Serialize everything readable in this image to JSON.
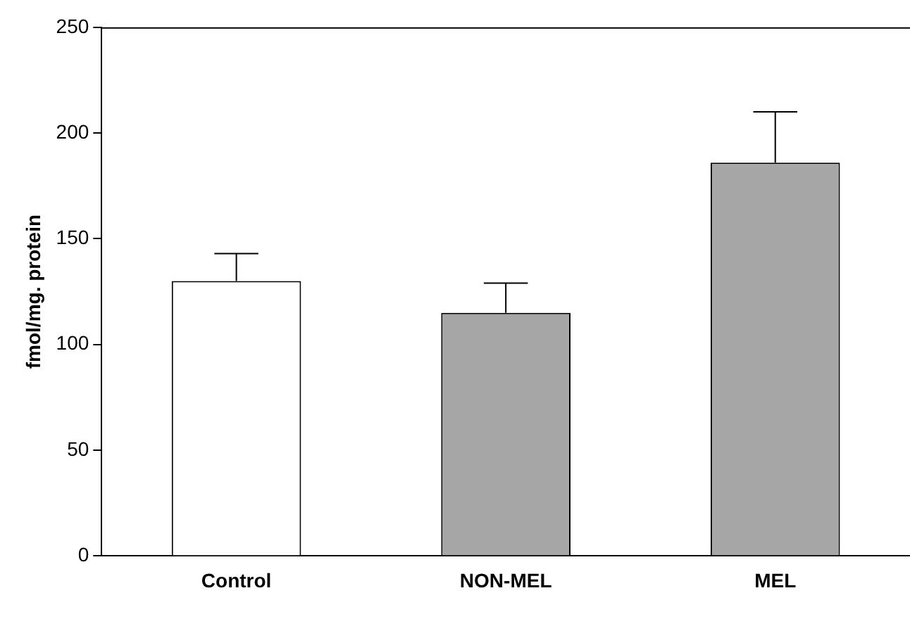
{
  "chart_data": {
    "type": "bar",
    "ylabel": "fmol/mg. protein",
    "categories": [
      "Control",
      "NON-MEL",
      "MEL"
    ],
    "values": [
      130,
      115,
      186
    ],
    "colors": [
      "#ffffff",
      "#a6a6a6",
      "#a6a6a6"
    ],
    "errors": [
      [
        130,
        143
      ],
      [
        115,
        129
      ],
      [
        186,
        210
      ]
    ],
    "ylim": [
      0,
      250
    ],
    "yticks": [
      0,
      50,
      100,
      150,
      200,
      250
    ],
    "grid": false,
    "legend": false
  }
}
